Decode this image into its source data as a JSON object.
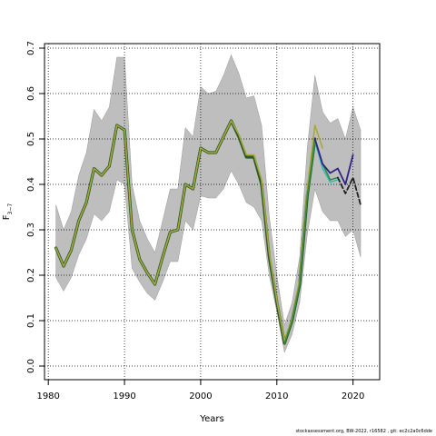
{
  "chart_data": {
    "type": "line",
    "xlabel": "Years",
    "ylabel_main": "F",
    "ylabel_sub": "3−7",
    "xlim": [
      1979.5,
      2023.5
    ],
    "ylim": [
      -0.03,
      0.71
    ],
    "xticks": [
      1980,
      1990,
      2000,
      2010,
      2020
    ],
    "yticks": [
      0.0,
      0.1,
      0.2,
      0.3,
      0.4,
      0.5,
      0.6,
      0.7
    ],
    "ytick_labels": [
      "0.0",
      "0.1",
      "0.2",
      "0.3",
      "0.4",
      "0.5",
      "0.6",
      "0.7"
    ],
    "grid": "dotted",
    "band": {
      "color": "#bebebe",
      "x": [
        1981,
        1982,
        1983,
        1984,
        1985,
        1986,
        1987,
        1988,
        1989,
        1990,
        1991,
        1992,
        1993,
        1994,
        1995,
        1996,
        1997,
        1998,
        1999,
        2000,
        2001,
        2002,
        2003,
        2004,
        2005,
        2006,
        2007,
        2008,
        2009,
        2010,
        2011,
        2012,
        2013,
        2014,
        2015,
        2016,
        2017,
        2018,
        2019,
        2020,
        2021
      ],
      "upper": [
        0.355,
        0.3,
        0.34,
        0.42,
        0.47,
        0.565,
        0.54,
        0.57,
        0.68,
        0.68,
        0.4,
        0.32,
        0.28,
        0.25,
        0.32,
        0.39,
        0.39,
        0.525,
        0.505,
        0.615,
        0.6,
        0.605,
        0.64,
        0.685,
        0.645,
        0.59,
        0.595,
        0.53,
        0.33,
        0.2,
        0.09,
        0.14,
        0.24,
        0.48,
        0.64,
        0.56,
        0.535,
        0.545,
        0.5,
        0.57,
        0.52
      ],
      "lower": [
        0.195,
        0.165,
        0.195,
        0.245,
        0.28,
        0.335,
        0.32,
        0.34,
        0.41,
        0.4,
        0.215,
        0.185,
        0.16,
        0.145,
        0.185,
        0.23,
        0.23,
        0.32,
        0.3,
        0.375,
        0.37,
        0.37,
        0.39,
        0.43,
        0.4,
        0.36,
        0.35,
        0.32,
        0.2,
        0.12,
        0.03,
        0.07,
        0.14,
        0.29,
        0.39,
        0.34,
        0.32,
        0.32,
        0.285,
        0.3,
        0.24
      ]
    },
    "series": [
      {
        "color": "#2a5a2a",
        "width": 3.2,
        "dash": "",
        "x": [
          1981,
          1982,
          1983,
          1984,
          1985,
          1986,
          1987,
          1988,
          1989,
          1990,
          1991,
          1992,
          1993,
          1994,
          1995,
          1996,
          1997,
          1998,
          1999,
          2000,
          2001,
          2002,
          2003,
          2004,
          2005,
          2006,
          2007,
          2008,
          2009,
          2010,
          2011,
          2012,
          2013,
          2014,
          2015
        ],
        "y": [
          0.26,
          0.22,
          0.255,
          0.32,
          0.36,
          0.435,
          0.42,
          0.44,
          0.53,
          0.52,
          0.3,
          0.235,
          0.205,
          0.18,
          0.24,
          0.295,
          0.3,
          0.4,
          0.39,
          0.48,
          0.47,
          0.47,
          0.505,
          0.54,
          0.505,
          0.46,
          0.46,
          0.4,
          0.24,
          0.14,
          0.05,
          0.1,
          0.18,
          0.375,
          0.5
        ]
      },
      {
        "color": "#a8a83a",
        "width": 1.6,
        "dash": "",
        "x": [
          1981,
          1982,
          1983,
          1984,
          1985,
          1986,
          1987,
          1988,
          1989,
          1990,
          1991,
          1992,
          1993,
          1994,
          1995,
          1996,
          1997,
          1998,
          1999,
          2000,
          2001,
          2002,
          2003,
          2004,
          2005,
          2006,
          2007,
          2008,
          2009,
          2010,
          2011,
          2012,
          2013,
          2014,
          2015,
          2016
        ],
        "y": [
          0.26,
          0.22,
          0.255,
          0.32,
          0.36,
          0.435,
          0.42,
          0.44,
          0.53,
          0.52,
          0.3,
          0.235,
          0.205,
          0.18,
          0.24,
          0.295,
          0.3,
          0.4,
          0.39,
          0.48,
          0.47,
          0.47,
          0.505,
          0.54,
          0.51,
          0.465,
          0.465,
          0.41,
          0.25,
          0.145,
          0.055,
          0.105,
          0.19,
          0.39,
          0.53,
          0.48
        ]
      },
      {
        "color": "#22bbbb",
        "width": 1.3,
        "dash": "",
        "x": [
          2014,
          2015,
          2016,
          2017,
          2018
        ],
        "y": [
          0.375,
          0.495,
          0.435,
          0.405,
          0.41
        ]
      },
      {
        "color": "#3a8a3a",
        "width": 1.6,
        "dash": "",
        "x": [
          2011,
          2012,
          2013,
          2014,
          2015,
          2016,
          2017,
          2018
        ],
        "y": [
          0.05,
          0.1,
          0.18,
          0.375,
          0.5,
          0.445,
          0.41,
          0.415
        ]
      },
      {
        "color": "#332288",
        "width": 1.8,
        "dash": "",
        "x": [
          2015,
          2016,
          2017,
          2018,
          2019,
          2020
        ],
        "y": [
          0.5,
          0.445,
          0.425,
          0.435,
          0.4,
          0.465
        ]
      },
      {
        "color": "#222222",
        "width": 1.8,
        "dash": "5,3",
        "x": [
          2018,
          2019,
          2020,
          2021
        ],
        "y": [
          0.415,
          0.38,
          0.415,
          0.355
        ]
      }
    ]
  },
  "footer": "stockassessment.org, BW-2022, r16582 , git: ec2c2a0c6dde"
}
